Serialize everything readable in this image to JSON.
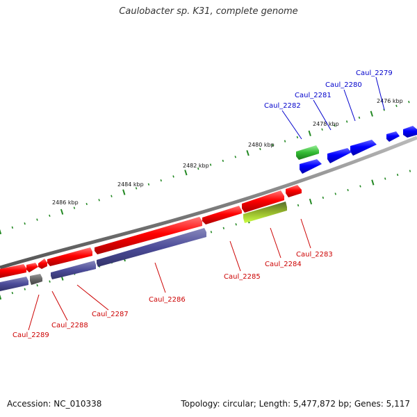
{
  "title": "Caulobacter sp. K31, complete genome",
  "footer": {
    "accession": "Accession: NC_010338",
    "genome_info": "Topology: circular; Length: 5,477,872 bp; Genes: 5,117"
  },
  "colors": {
    "backbone": "#7f7f7f",
    "forward_gene": "#0000ff",
    "reverse_gene": "#ff0000",
    "green_feature": "#33bb33",
    "purple_feature": "#4c4c99",
    "yellow_green_feature": "#aadd33",
    "gray_feature": "#666666",
    "tick": "#228822",
    "label_forward": "#0000cc",
    "label_reverse": "#cc0000"
  },
  "coordinate_ruler": {
    "unit": "kbp",
    "labels": [
      "2476 kbp",
      "2478 kbp",
      "2480 kbp",
      "2482 kbp",
      "2484 kbp",
      "2486 kbp"
    ]
  },
  "gene_labels": {
    "forward": [
      "Caul_2279",
      "Caul_2280",
      "Caul_2281",
      "Caul_2282"
    ],
    "reverse": [
      "Caul_2283",
      "Caul_2284",
      "Caul_2285",
      "Caul_2286",
      "Caul_2287",
      "Caul_2288",
      "Caul_2289"
    ]
  }
}
